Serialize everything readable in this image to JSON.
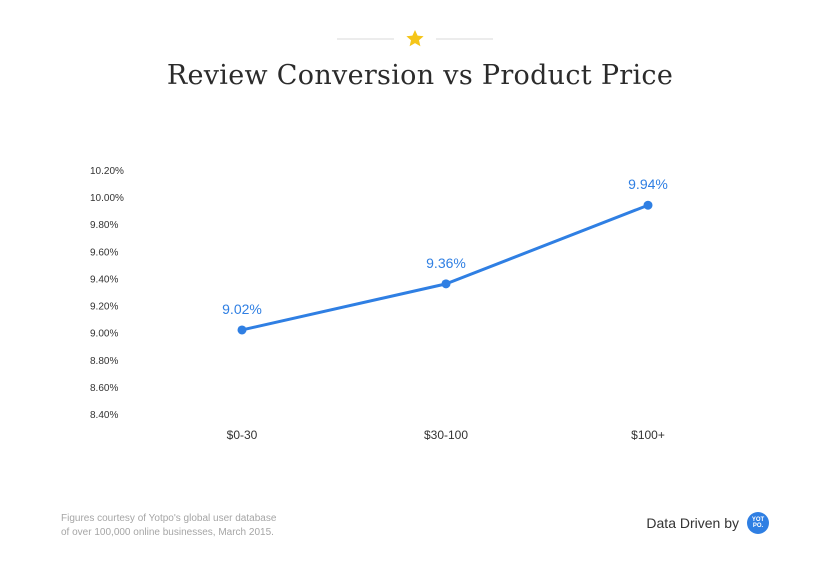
{
  "header": {
    "title": "Review Conversion vs Product Price",
    "ornament_icon": "star-icon",
    "ornament_color": "#f5c518"
  },
  "chart_data": {
    "type": "line",
    "title": "Review Conversion vs Product Price",
    "categories": [
      "$0-30",
      "$30-100",
      "$100+"
    ],
    "values": [
      9.02,
      9.36,
      9.94
    ],
    "data_labels": [
      "9.02%",
      "9.36%",
      "9.94%"
    ],
    "yticks": [
      "10.20%",
      "10.00%",
      "9.80%",
      "9.60%",
      "9.40%",
      "9.20%",
      "9.00%",
      "8.80%",
      "8.60%",
      "8.40%"
    ],
    "ylim": [
      8.4,
      10.2
    ],
    "grid": false,
    "xlabel": "",
    "ylabel": "",
    "line_color": "#2f7fe3"
  },
  "footer": {
    "note_line1": "Figures courtesy of Yotpo's global user database",
    "note_line2": "of over 100,000 online businesses, March 2015.",
    "brand_text": "Data Driven by",
    "logo_text": "YOT PO."
  }
}
